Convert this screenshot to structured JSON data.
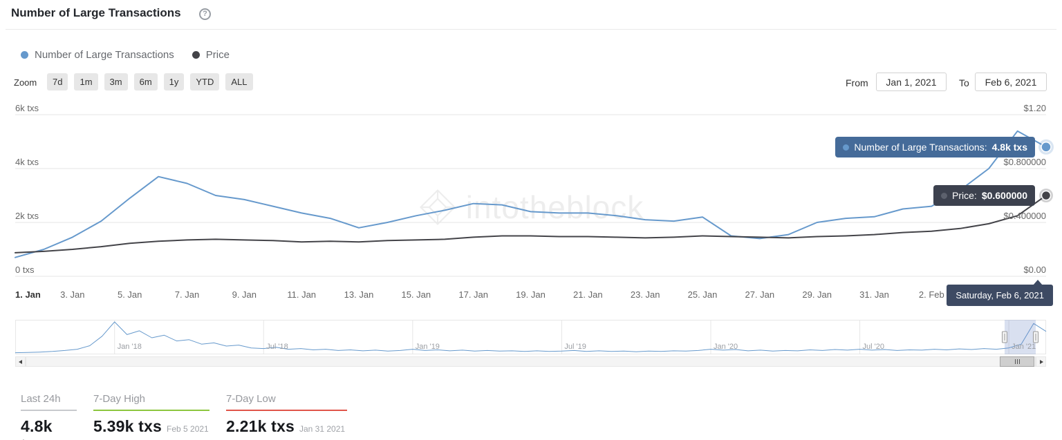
{
  "header": {
    "title": "Number of Large Transactions",
    "help_glyph": "?"
  },
  "legend": [
    {
      "label": "Number of Large Transactions",
      "color": "#6699cc"
    },
    {
      "label": "Price",
      "color": "#434348"
    }
  ],
  "zoom": {
    "label": "Zoom",
    "buttons": [
      "7d",
      "1m",
      "3m",
      "6m",
      "1y",
      "YTD",
      "ALL"
    ]
  },
  "range": {
    "from_label": "From",
    "from_value": "Jan 1, 2021",
    "to_label": "To",
    "to_value": "Feb 6, 2021"
  },
  "colors": {
    "txs_series": "#6699cc",
    "price_series": "#434348",
    "grid": "#e6e6e6",
    "axis_label": "#666666",
    "tooltip_txs_bg": "#456b99",
    "tooltip_price_bg": "#3c414e",
    "tooltip_date_bg": "#3d4a63",
    "high_accent": "#8cc63e",
    "low_accent": "#e05449",
    "last24_accent": "#c7c9cd"
  },
  "tooltips": {
    "transactions": {
      "label": "Number of Large Transactions:",
      "value": "4.8k txs"
    },
    "price": {
      "label": "Price:",
      "value": "$0.600000"
    },
    "date": "Saturday, Feb 6, 2021"
  },
  "watermark": {
    "text": "intotheblock"
  },
  "chart_data": [
    {
      "type": "line",
      "title": "Number of Large Transactions",
      "x": [
        "Jan 1",
        "Jan 2",
        "Jan 3",
        "Jan 4",
        "Jan 5",
        "Jan 6",
        "Jan 7",
        "Jan 8",
        "Jan 9",
        "Jan 10",
        "Jan 11",
        "Jan 12",
        "Jan 13",
        "Jan 14",
        "Jan 15",
        "Jan 16",
        "Jan 17",
        "Jan 18",
        "Jan 19",
        "Jan 20",
        "Jan 21",
        "Jan 22",
        "Jan 23",
        "Jan 24",
        "Jan 25",
        "Jan 26",
        "Jan 27",
        "Jan 28",
        "Jan 29",
        "Jan 30",
        "Jan 31",
        "Feb 1",
        "Feb 2",
        "Feb 3",
        "Feb 4",
        "Feb 5",
        "Feb 6"
      ],
      "x_ticks": [
        "1. Jan",
        "3. Jan",
        "5. Jan",
        "7. Jan",
        "9. Jan",
        "11. Jan",
        "13. Jan",
        "15. Jan",
        "17. Jan",
        "19. Jan",
        "21. Jan",
        "23. Jan",
        "25. Jan",
        "27. Jan",
        "29. Jan",
        "31. Jan",
        "2. Feb"
      ],
      "series": [
        {
          "name": "Number of Large Transactions",
          "color": "#6699cc",
          "yaxis": "left",
          "values": [
            700,
            1000,
            1450,
            2050,
            2900,
            3700,
            3450,
            3000,
            2850,
            2600,
            2350,
            2150,
            1800,
            2000,
            2250,
            2450,
            2700,
            2650,
            2400,
            2350,
            2350,
            2250,
            2100,
            2050,
            2200,
            1500,
            1400,
            1550,
            2000,
            2150,
            2210,
            2500,
            2600,
            3200,
            4000,
            5390,
            4800
          ]
        },
        {
          "name": "Price",
          "color": "#434348",
          "yaxis": "right",
          "values": [
            0.175,
            0.185,
            0.2,
            0.22,
            0.245,
            0.26,
            0.27,
            0.275,
            0.27,
            0.265,
            0.255,
            0.26,
            0.255,
            0.265,
            0.27,
            0.275,
            0.29,
            0.3,
            0.3,
            0.295,
            0.295,
            0.29,
            0.285,
            0.29,
            0.3,
            0.295,
            0.29,
            0.285,
            0.295,
            0.3,
            0.31,
            0.325,
            0.335,
            0.355,
            0.39,
            0.45,
            0.6
          ]
        }
      ],
      "y_left": {
        "ticks": [
          "6k txs",
          "4k txs",
          "2k txs",
          "0 txs"
        ],
        "min": 0,
        "max": 6000
      },
      "y_right": {
        "ticks": [
          "$1.20",
          "$0.800000",
          "$0.400000",
          "$0.00"
        ],
        "min": 0,
        "max": 1.2
      },
      "grid": "horizontal",
      "legend_position": "top-left"
    },
    {
      "type": "line",
      "role": "navigator",
      "labels": [
        "Jan '18",
        "Jul '18",
        "Jan '19",
        "Jul '19",
        "Jan '20",
        "Jul '20",
        "Jan '21"
      ],
      "values": [
        3,
        4,
        5,
        7,
        10,
        14,
        25,
        55,
        100,
        60,
        72,
        50,
        58,
        40,
        44,
        30,
        34,
        24,
        27,
        18,
        16,
        20,
        14,
        16,
        12,
        14,
        10,
        12,
        9,
        11,
        8,
        10,
        14,
        10,
        12,
        9,
        11,
        8,
        10,
        8,
        9,
        7,
        9,
        7,
        8,
        10,
        7,
        9,
        7,
        8,
        6,
        8,
        7,
        9,
        8,
        10,
        14,
        11,
        13,
        9,
        11,
        8,
        10,
        9,
        12,
        10,
        13,
        11,
        14,
        11,
        13,
        10,
        12,
        11,
        14,
        12,
        15,
        13,
        16,
        14,
        18,
        30,
        95,
        70
      ],
      "value_scale": [
        0,
        100
      ],
      "selected_range": {
        "from": "Jan 1, 2021",
        "to": "Feb 6, 2021"
      }
    }
  ],
  "stats": [
    {
      "label": "Last 24h",
      "value": "4.8k txs",
      "date": "",
      "accent": "#c7c9cd"
    },
    {
      "label": "7-Day High",
      "value": "5.39k txs",
      "date": "Feb 5 2021",
      "accent": "#8cc63e"
    },
    {
      "label": "7-Day Low",
      "value": "2.21k txs",
      "date": "Jan 31 2021",
      "accent": "#e05449"
    }
  ]
}
